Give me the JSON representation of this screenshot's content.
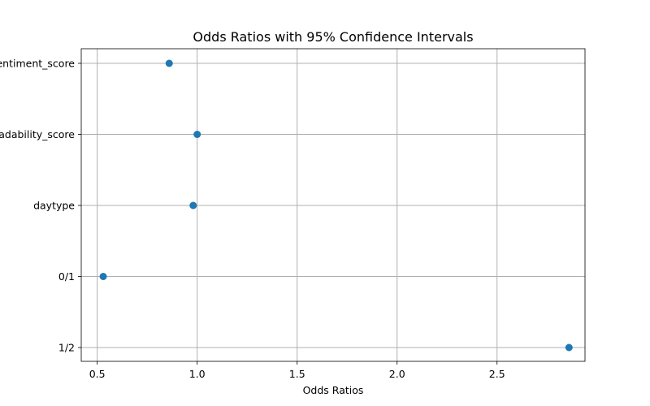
{
  "chart_data": {
    "type": "scatter",
    "title": "Odds Ratios with 95% Confidence Intervals",
    "xlabel": "Odds Ratios",
    "ylabel": "",
    "categories": [
      "1/2",
      "0/1",
      "daytype",
      "readability_score",
      "sentiment_score"
    ],
    "values": [
      2.86,
      0.53,
      0.98,
      1.0,
      0.86
    ],
    "xlim": [
      0.42,
      2.94
    ],
    "xticks": [
      0.5,
      1.0,
      1.5,
      2.0,
      2.5
    ],
    "xtick_labels": [
      "0.5",
      "1.0",
      "1.5",
      "2.0",
      "2.5"
    ],
    "grid": true,
    "marker_color": "#1f77b4"
  }
}
